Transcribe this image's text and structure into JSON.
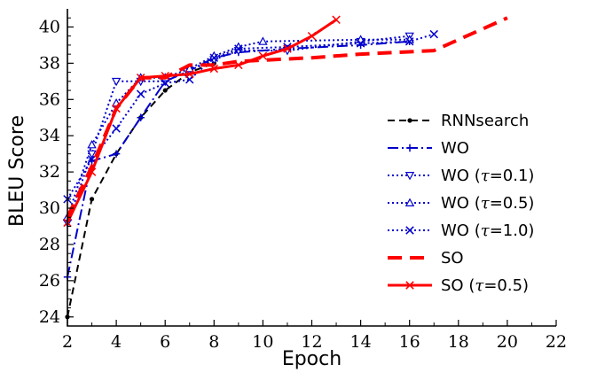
{
  "chart_data": {
    "type": "line",
    "title": "",
    "xlabel": "Epoch",
    "ylabel": "BLEU Score",
    "xlim": [
      2,
      22
    ],
    "ylim": [
      23.5,
      41
    ],
    "xticks": [
      "2",
      "4",
      "6",
      "8",
      "10",
      "12",
      "14",
      "16",
      "18",
      "20",
      "22"
    ],
    "yticks": [
      "24",
      "26",
      "28",
      "30",
      "32",
      "34",
      "36",
      "38",
      "40"
    ],
    "grid": false,
    "legend_position": "right",
    "series": [
      {
        "name": "RNNsearch",
        "color": "#000000",
        "dash": "dashed",
        "marker": "dot",
        "width": 2,
        "points": [
          [
            2,
            24.0
          ],
          [
            3,
            30.5
          ],
          [
            4,
            33.0
          ],
          [
            5,
            35.0
          ],
          [
            6,
            36.5
          ],
          [
            7,
            37.5
          ],
          [
            8,
            38.0
          ]
        ]
      },
      {
        "name": "WO",
        "color": "#0000cc",
        "dash": "dashdot",
        "marker": "plus",
        "width": 2,
        "points": [
          [
            2,
            26.2
          ],
          [
            3,
            32.6
          ],
          [
            4,
            33.0
          ],
          [
            5,
            35.0
          ],
          [
            6,
            37.0
          ],
          [
            7,
            37.6
          ],
          [
            8,
            38.3
          ],
          [
            9,
            38.6
          ],
          [
            11,
            38.8
          ],
          [
            14,
            39.0
          ],
          [
            16,
            39.2
          ]
        ]
      },
      {
        "name": "WO (τ=0.1)",
        "color": "#0000cc",
        "dash": "dotted",
        "marker": "tri-down",
        "width": 2,
        "points": [
          [
            2,
            29.2
          ],
          [
            3,
            33.0
          ],
          [
            4,
            37.0
          ],
          [
            5,
            37.0
          ],
          [
            6,
            37.0
          ],
          [
            7,
            37.6
          ],
          [
            8,
            38.2
          ],
          [
            9,
            38.7
          ],
          [
            11,
            38.7
          ],
          [
            14,
            39.2
          ],
          [
            16,
            39.5
          ]
        ]
      },
      {
        "name": "WO (τ=0.5)",
        "color": "#0000cc",
        "dash": "dotted",
        "marker": "tri-up",
        "width": 2,
        "points": [
          [
            2,
            29.5
          ],
          [
            3,
            33.5
          ],
          [
            4,
            35.8
          ],
          [
            5,
            37.2
          ],
          [
            6,
            37.2
          ],
          [
            7,
            37.7
          ],
          [
            8,
            38.4
          ],
          [
            9,
            38.9
          ],
          [
            10,
            39.2
          ],
          [
            14,
            39.3
          ],
          [
            16,
            39.3
          ]
        ]
      },
      {
        "name": "WO (τ=1.0)",
        "color": "#0000cc",
        "dash": "dotted",
        "marker": "x",
        "width": 2,
        "points": [
          [
            2,
            30.5
          ],
          [
            3,
            32.7
          ],
          [
            4,
            34.4
          ],
          [
            5,
            36.3
          ],
          [
            6,
            36.9
          ],
          [
            7,
            37.1
          ],
          [
            8,
            38.3
          ],
          [
            9,
            38.8
          ],
          [
            11,
            38.9
          ],
          [
            14,
            39.1
          ],
          [
            16,
            39.2
          ],
          [
            17,
            39.6
          ]
        ]
      },
      {
        "name": "SO",
        "color": "#ff0000",
        "dash": "longdash",
        "marker": "none",
        "width": 4,
        "points": [
          [
            2,
            29.5
          ],
          [
            3,
            32.3
          ],
          [
            4,
            35.5
          ],
          [
            5,
            37.2
          ],
          [
            6,
            37.2
          ],
          [
            7,
            37.9
          ],
          [
            8,
            37.9
          ],
          [
            9,
            38.1
          ],
          [
            12,
            38.3
          ],
          [
            14,
            38.5
          ],
          [
            17,
            38.7
          ],
          [
            20,
            40.5
          ]
        ]
      },
      {
        "name": "SO (τ=0.5)",
        "color": "#ff0000",
        "dash": "solid",
        "marker": "x",
        "width": 3,
        "points": [
          [
            2,
            29.2
          ],
          [
            3,
            32.0
          ],
          [
            4,
            35.5
          ],
          [
            5,
            37.2
          ],
          [
            6,
            37.3
          ],
          [
            7,
            37.4
          ],
          [
            8,
            37.7
          ],
          [
            9,
            37.9
          ],
          [
            10,
            38.4
          ],
          [
            11,
            38.8
          ],
          [
            12,
            39.5
          ],
          [
            13,
            40.4
          ]
        ]
      }
    ]
  }
}
